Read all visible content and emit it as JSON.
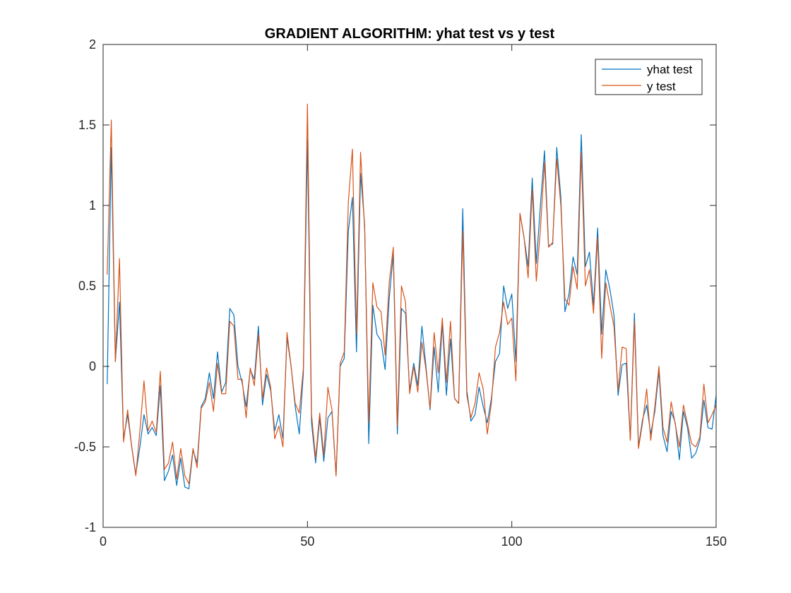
{
  "chart_data": {
    "type": "line",
    "title": "GRADIENT ALGORITHM: yhat test vs y test",
    "xlabel": "",
    "ylabel": "",
    "xlim": [
      0,
      150
    ],
    "ylim": [
      -1,
      2
    ],
    "xticks": [
      0,
      50,
      100,
      150
    ],
    "yticks": [
      -1,
      -0.5,
      0,
      0.5,
      1,
      1.5,
      2
    ],
    "ytick_labels": [
      "-1",
      "-0.5",
      "0",
      "0.5",
      "1",
      "1.5",
      "2"
    ],
    "xtick_labels": [
      "0",
      "50",
      "100",
      "150"
    ],
    "grid": false,
    "legend_position": "top-right",
    "series": [
      {
        "name": "yhat test",
        "color": "#0072BD",
        "values": [
          -0.11,
          1.36,
          0.03,
          0.4,
          -0.45,
          -0.3,
          -0.5,
          -0.67,
          -0.5,
          -0.3,
          -0.42,
          -0.38,
          -0.43,
          -0.12,
          -0.71,
          -0.65,
          -0.55,
          -0.74,
          -0.57,
          -0.75,
          -0.76,
          -0.52,
          -0.6,
          -0.25,
          -0.2,
          -0.04,
          -0.2,
          0.09,
          -0.16,
          -0.1,
          0.36,
          0.32,
          0.0,
          -0.1,
          -0.25,
          -0.02,
          -0.08,
          0.25,
          -0.24,
          -0.05,
          -0.15,
          -0.4,
          -0.3,
          -0.45,
          0.18,
          0.0,
          -0.25,
          -0.42,
          -0.04,
          1.41,
          -0.35,
          -0.6,
          -0.32,
          -0.59,
          -0.32,
          -0.28,
          -0.68,
          0.0,
          0.05,
          0.84,
          1.05,
          0.09,
          1.2,
          0.88,
          -0.48,
          0.38,
          0.2,
          0.16,
          -0.02,
          0.42,
          0.7,
          -0.42,
          0.36,
          0.33,
          -0.15,
          0.02,
          -0.12,
          0.25,
          0.0,
          -0.27,
          0.12,
          -0.16,
          0.27,
          -0.18,
          0.17,
          -0.2,
          -0.23,
          0.98,
          -0.15,
          -0.34,
          -0.3,
          -0.13,
          -0.25,
          -0.35,
          -0.2,
          0.03,
          0.08,
          0.5,
          0.36,
          0.45,
          0.03,
          0.95,
          0.8,
          0.62,
          1.17,
          0.64,
          1.0,
          1.34,
          0.75,
          0.76,
          1.36,
          1.05,
          0.34,
          0.45,
          0.68,
          0.57,
          1.44,
          0.62,
          0.71,
          0.38,
          0.86,
          0.2,
          0.6,
          0.48,
          0.32,
          -0.18,
          0.01,
          0.02,
          -0.45,
          0.33,
          -0.5,
          -0.33,
          -0.24,
          -0.42,
          -0.28,
          -0.03,
          -0.43,
          -0.53,
          -0.28,
          -0.35,
          -0.58,
          -0.28,
          -0.38,
          -0.57,
          -0.54,
          -0.46,
          -0.21,
          -0.38,
          -0.39,
          -0.18
        ]
      },
      {
        "name": "y test",
        "color": "#D95319",
        "values": [
          0.57,
          1.53,
          0.03,
          0.67,
          -0.47,
          -0.27,
          -0.5,
          -0.68,
          -0.4,
          -0.09,
          -0.4,
          -0.34,
          -0.41,
          -0.03,
          -0.64,
          -0.6,
          -0.47,
          -0.7,
          -0.51,
          -0.68,
          -0.73,
          -0.51,
          -0.63,
          -0.26,
          -0.22,
          -0.1,
          -0.28,
          0.02,
          -0.17,
          -0.17,
          0.28,
          0.25,
          -0.08,
          -0.08,
          -0.32,
          -0.01,
          -0.12,
          0.2,
          -0.2,
          -0.01,
          -0.13,
          -0.45,
          -0.37,
          -0.5,
          0.21,
          0.0,
          -0.23,
          -0.29,
          -0.01,
          1.63,
          -0.3,
          -0.57,
          -0.29,
          -0.55,
          -0.13,
          -0.27,
          -0.68,
          0.02,
          0.09,
          1.02,
          1.35,
          0.2,
          1.33,
          0.85,
          -0.35,
          0.52,
          0.37,
          0.34,
          0.07,
          0.52,
          0.74,
          -0.37,
          0.5,
          0.4,
          -0.17,
          0.0,
          -0.16,
          0.15,
          -0.02,
          -0.26,
          0.21,
          -0.04,
          0.3,
          -0.1,
          0.28,
          -0.2,
          -0.23,
          0.84,
          -0.18,
          -0.32,
          -0.23,
          -0.04,
          -0.14,
          -0.42,
          -0.23,
          0.12,
          0.21,
          0.4,
          0.26,
          0.3,
          -0.09,
          0.95,
          0.8,
          0.55,
          1.1,
          0.53,
          0.85,
          1.27,
          0.74,
          0.77,
          1.29,
          1.0,
          0.42,
          0.38,
          0.62,
          0.48,
          1.33,
          0.5,
          0.6,
          0.33,
          0.8,
          0.05,
          0.52,
          0.38,
          0.25,
          -0.15,
          0.12,
          0.11,
          -0.46,
          0.28,
          -0.51,
          -0.35,
          -0.14,
          -0.46,
          -0.25,
          0.0,
          -0.38,
          -0.47,
          -0.22,
          -0.36,
          -0.5,
          -0.24,
          -0.36,
          -0.48,
          -0.5,
          -0.44,
          -0.11,
          -0.35,
          -0.3,
          -0.24
        ]
      }
    ]
  }
}
